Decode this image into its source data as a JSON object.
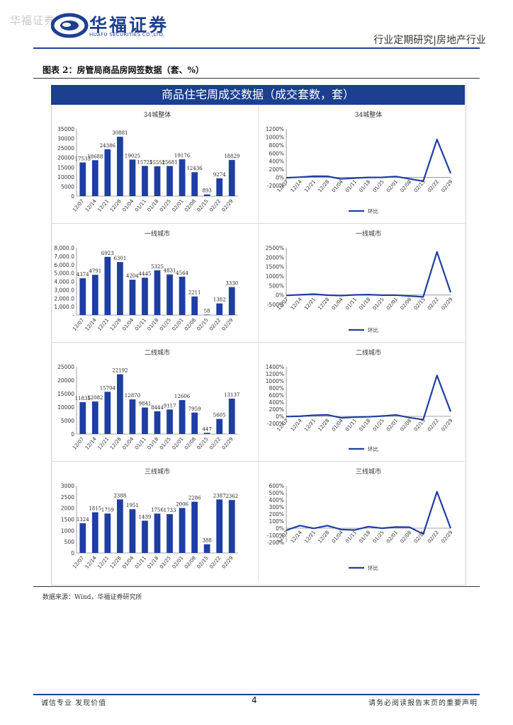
{
  "header": {
    "watermark": "华福证券",
    "logo_cn": "华福证券",
    "logo_en": "HUAFU SECURITIES CO.,LTD.",
    "report_type": "行业定期研究|房地产行业"
  },
  "figure": {
    "title": "图表 2：房管局商品房网签数据（套、%）",
    "banner": "商品住宅周成交数据（成交套数，套）",
    "source": "数据来源：Wind，华福证券研究所"
  },
  "colors": {
    "brand": "#1d3f8f",
    "bar": "#1f3ea3",
    "line": "#1f3ea3",
    "banner": "#1c3f8f"
  },
  "chart_data": [
    {
      "type": "bar",
      "title": "34城整体",
      "categories": [
        "12/07",
        "12/14",
        "12/21",
        "12/28",
        "01/04",
        "01/11",
        "01/18",
        "01/25",
        "02/01",
        "02/08",
        "02/15",
        "02/22",
        "02/29"
      ],
      "values": [
        17533,
        18688,
        24386,
        30881,
        19025,
        15725,
        15552,
        15681,
        19176,
        12436,
        893,
        9274,
        18829
      ],
      "value_labels": [
        "17533",
        "18688",
        "24386",
        "30881",
        "19025",
        "15725",
        "15552",
        "15681",
        "19176",
        "12436",
        "893",
        "9274",
        "18829"
      ],
      "yticks": [
        "35000",
        "30000",
        "25000",
        "20000",
        "15000",
        "10000",
        "5000",
        "0"
      ],
      "ylim": [
        0,
        35000
      ]
    },
    {
      "type": "line",
      "title": "34城整体",
      "categories": [
        "12/07",
        "12/14",
        "12/21",
        "12/28",
        "01/04",
        "01/11",
        "01/18",
        "01/25",
        "02/01",
        "02/08",
        "02/15",
        "02/22",
        "02/29"
      ],
      "series": [
        {
          "name": "环比",
          "values": [
            -10,
            7,
            30,
            27,
            -38,
            -17,
            -1,
            1,
            22,
            -35,
            -93,
            938,
            103
          ]
        }
      ],
      "yticks": [
        "1200%",
        "1000%",
        "800%",
        "600%",
        "400%",
        "200%",
        "0%",
        "-200%"
      ],
      "ylim": [
        -200,
        1200
      ]
    },
    {
      "type": "bar",
      "title": "一线城市",
      "categories": [
        "12/07",
        "12/14",
        "12/21",
        "12/28",
        "01/04",
        "01/11",
        "01/18",
        "01/25",
        "02/01",
        "02/08",
        "02/15",
        "02/22",
        "02/29"
      ],
      "values": [
        4374,
        4791,
        6923,
        6301,
        4204,
        4445,
        5325,
        4831,
        4564,
        2211,
        58,
        1382,
        3330
      ],
      "value_labels": [
        "4374",
        "4791",
        "6923",
        "6301",
        "4204",
        "4445",
        "5325",
        "4831",
        "4564",
        "2211",
        "58",
        "1382",
        "3330"
      ],
      "yticks": [
        "8,000.0",
        "7,000.0",
        "6,000.0",
        "5,000.0",
        "4,000.0",
        "3,000.0",
        "2,000.0",
        "1,000.0",
        "-"
      ],
      "ylim": [
        0,
        8000
      ]
    },
    {
      "type": "line",
      "title": "一线城市",
      "categories": [
        "12/07",
        "12/14",
        "12/21",
        "12/28",
        "01/04",
        "01/11",
        "01/18",
        "01/25",
        "02/01",
        "02/08",
        "02/15",
        "02/22",
        "02/29"
      ],
      "series": [
        {
          "name": "环比",
          "values": [
            -20,
            10,
            45,
            -9,
            -33,
            6,
            20,
            -9,
            -6,
            -52,
            -97,
            2283,
            141
          ]
        }
      ],
      "yticks": [
        "2500%",
        "2000%",
        "1500%",
        "1000%",
        "500%",
        "0%",
        "-500%"
      ],
      "ylim": [
        -500,
        2500
      ]
    },
    {
      "type": "bar",
      "title": "二线城市",
      "categories": [
        "12/07",
        "12/14",
        "12/21",
        "12/28",
        "01/04",
        "01/11",
        "01/18",
        "01/25",
        "02/01",
        "02/08",
        "02/15",
        "02/22",
        "02/29"
      ],
      "values": [
        11835,
        12082,
        15704,
        22192,
        12870,
        9841,
        8444,
        9117,
        12606,
        7959,
        447,
        5605,
        13137
      ],
      "value_labels": [
        "11835",
        "12082",
        "15704",
        "22192",
        "12870",
        "9841",
        "8444",
        "9117",
        "12606",
        "7959",
        "447",
        "5605",
        "13137"
      ],
      "yticks": [
        "25000",
        "20000",
        "15000",
        "10000",
        "5000",
        "0"
      ],
      "ylim": [
        0,
        25000
      ]
    },
    {
      "type": "line",
      "title": "二线城市",
      "categories": [
        "12/07",
        "12/14",
        "12/21",
        "12/28",
        "01/04",
        "01/11",
        "01/18",
        "01/25",
        "02/01",
        "02/08",
        "02/15",
        "02/22",
        "02/29"
      ],
      "series": [
        {
          "name": "环比",
          "values": [
            -5,
            2,
            30,
            41,
            -42,
            -24,
            -14,
            8,
            38,
            -37,
            -94,
            1154,
            134
          ]
        }
      ],
      "yticks": [
        "1400%",
        "1200%",
        "1000%",
        "800%",
        "600%",
        "400%",
        "200%",
        "0%",
        "-200%"
      ],
      "ylim": [
        -200,
        1400
      ]
    },
    {
      "type": "bar",
      "title": "三线城市",
      "categories": [
        "12/07",
        "12/14",
        "12/21",
        "12/28",
        "01/04",
        "01/11",
        "01/18",
        "01/25",
        "02/01",
        "02/08",
        "02/15",
        "02/22",
        "02/29"
      ],
      "values": [
        1324,
        1815,
        1759,
        2388,
        1951,
        1439,
        1756,
        1733,
        2006,
        2286,
        388,
        2387,
        2362
      ],
      "value_labels": [
        "1324",
        "1815",
        "1759",
        "2388",
        "1951",
        "1439",
        "1756",
        "1733",
        "2006",
        "2286",
        "388",
        "2387",
        "2362"
      ],
      "yticks": [
        "3000",
        "2500",
        "2000",
        "1500",
        "1000",
        "500",
        "0"
      ],
      "ylim": [
        0,
        3000
      ]
    },
    {
      "type": "line",
      "title": "三线城市",
      "categories": [
        "12/07",
        "12/14",
        "12/21",
        "12/28",
        "01/04",
        "01/11",
        "01/18",
        "01/25",
        "02/01",
        "02/08",
        "02/15",
        "02/22",
        "02/29"
      ],
      "series": [
        {
          "name": "环比",
          "values": [
            -30,
            37,
            -3,
            36,
            -18,
            -26,
            22,
            -1,
            16,
            14,
            -83,
            515,
            -1
          ]
        }
      ],
      "yticks": [
        "600%",
        "500%",
        "400%",
        "300%",
        "200%",
        "100%",
        "0%",
        "-100%",
        "-200%"
      ],
      "ylim": [
        -200,
        600
      ]
    }
  ],
  "footer": {
    "left": "诚信专业  发现价值",
    "page": "4",
    "right": "请务必阅读报告末页的重要声明"
  }
}
